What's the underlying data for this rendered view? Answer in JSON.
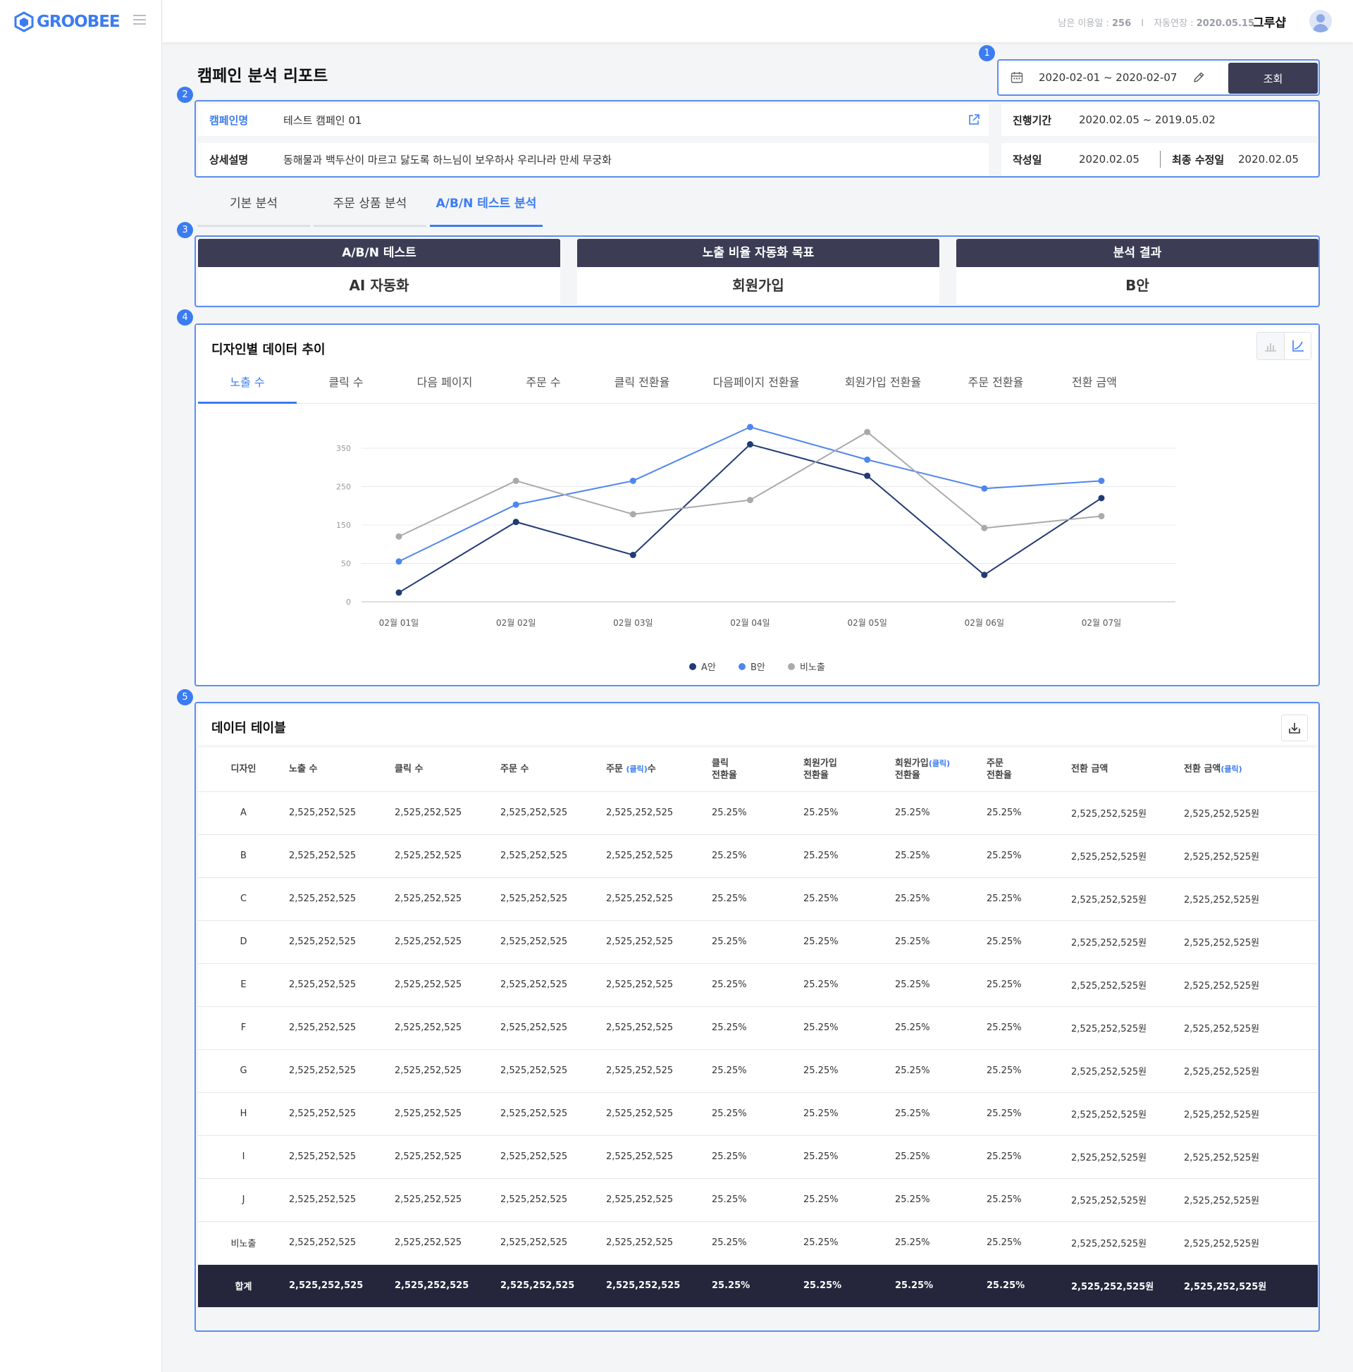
{
  "brand": {
    "logo_text": "GROOBEE",
    "accent": "#3b7cf2",
    "dark": "#3c3d55"
  },
  "header": {
    "remaining_label": "남은 이용일 :",
    "remaining_value": "256",
    "separator": "I",
    "auto_renew_label": "자동연장 :",
    "auto_renew_value": "2020.05.15",
    "shop_name": "그루샵"
  },
  "markers": [
    "1",
    "2",
    "3",
    "4",
    "5"
  ],
  "page_title": "캠페인 분석 리포트",
  "date_search": {
    "range": "2020-02-01 ~ 2020-02-07",
    "button": "조회"
  },
  "campaign": {
    "name_label": "캠페인명",
    "name_value": "테스트 캠페인 01",
    "desc_label": "상세설명",
    "desc_value": "동해물과 백두산이 마르고 닳도록 하느님이 보우하사 우리나라 만세 무궁화",
    "period_label": "진행기간",
    "period_value": "2020.02.05 ~ 2019.05.02",
    "created_label": "작성일",
    "created_value": "2020.02.05",
    "modified_label": "최종 수정일",
    "modified_value": "2020.02.05"
  },
  "main_tabs": [
    {
      "label": "기본 분석",
      "active": false
    },
    {
      "label": "주문 상품 분석",
      "active": false
    },
    {
      "label": "A/B/N 테스트 분석",
      "active": true
    }
  ],
  "ab_summary": [
    {
      "title": "A/B/N 테스트",
      "value": "AI 자동화"
    },
    {
      "title": "노출 비율 자동화 목표",
      "value": "회원가입"
    },
    {
      "title": "분석 결과",
      "value": "B안"
    }
  ],
  "chart_panel": {
    "title": "디자인별 데이터 추이",
    "metric_tabs": [
      "노출 수",
      "클릭 수",
      "다음 페이지",
      "주문 수",
      "클릭 전환율",
      "다음페이지 전환율",
      "회원가입  전환율",
      "주문 전환율",
      "전환 금액"
    ],
    "active_metric": 0
  },
  "chart_data": {
    "type": "line",
    "x": [
      "02월 01일",
      "02월 02일",
      "02월 03일",
      "02월 04일",
      "02월 05일",
      "02월 06일",
      "02월 07일"
    ],
    "y_ticks": [
      "350",
      "250",
      "150",
      "50",
      "0"
    ],
    "series": [
      {
        "name": "A안",
        "color": "#213b74",
        "values": [
          12,
          158,
          72,
          360,
          278,
          35,
          220
        ]
      },
      {
        "name": "B안",
        "color": "#4f86ee",
        "values": [
          55,
          203,
          265,
          405,
          320,
          245,
          265
        ]
      },
      {
        "name": "비노출",
        "color": "#a9aaad",
        "values": [
          120,
          265,
          178,
          215,
          392,
          142,
          173
        ]
      }
    ],
    "legend_position": "bottom-center",
    "grid": true
  },
  "table_panel": {
    "title": "데이터 테이블",
    "headers": [
      {
        "main": "디자인",
        "sub": ""
      },
      {
        "main": "노출 수",
        "sub": ""
      },
      {
        "main": "클릭 수",
        "sub": ""
      },
      {
        "main": "주문 수",
        "sub": ""
      },
      {
        "main": "주문 ",
        "blue": "(클릭)",
        "tail": "수"
      },
      {
        "main": "클릭",
        "sub": "전환율"
      },
      {
        "main": "회원가입",
        "sub": "전환율"
      },
      {
        "main": "회원가입",
        "blue": "(클릭)",
        "sub": "전환율"
      },
      {
        "main": "주문",
        "sub": "전환율"
      },
      {
        "main": "전환 금액",
        "sub": ""
      },
      {
        "main": "전환 금액",
        "blue": "(클릭)",
        "sub": ""
      }
    ],
    "rows": [
      [
        "A",
        "2,525,252,525",
        "2,525,252,525",
        "2,525,252,525",
        "2,525,252,525",
        "25.25%",
        "25.25%",
        "25.25%",
        "25.25%",
        "2,525,252,525원",
        "2,525,252,525원"
      ],
      [
        "B",
        "2,525,252,525",
        "2,525,252,525",
        "2,525,252,525",
        "2,525,252,525",
        "25.25%",
        "25.25%",
        "25.25%",
        "25.25%",
        "2,525,252,525원",
        "2,525,252,525원"
      ],
      [
        "C",
        "2,525,252,525",
        "2,525,252,525",
        "2,525,252,525",
        "2,525,252,525",
        "25.25%",
        "25.25%",
        "25.25%",
        "25.25%",
        "2,525,252,525원",
        "2,525,252,525원"
      ],
      [
        "D",
        "2,525,252,525",
        "2,525,252,525",
        "2,525,252,525",
        "2,525,252,525",
        "25.25%",
        "25.25%",
        "25.25%",
        "25.25%",
        "2,525,252,525원",
        "2,525,252,525원"
      ],
      [
        "E",
        "2,525,252,525",
        "2,525,252,525",
        "2,525,252,525",
        "2,525,252,525",
        "25.25%",
        "25.25%",
        "25.25%",
        "25.25%",
        "2,525,252,525원",
        "2,525,252,525원"
      ],
      [
        "F",
        "2,525,252,525",
        "2,525,252,525",
        "2,525,252,525",
        "2,525,252,525",
        "25.25%",
        "25.25%",
        "25.25%",
        "25.25%",
        "2,525,252,525원",
        "2,525,252,525원"
      ],
      [
        "G",
        "2,525,252,525",
        "2,525,252,525",
        "2,525,252,525",
        "2,525,252,525",
        "25.25%",
        "25.25%",
        "25.25%",
        "25.25%",
        "2,525,252,525원",
        "2,525,252,525원"
      ],
      [
        "H",
        "2,525,252,525",
        "2,525,252,525",
        "2,525,252,525",
        "2,525,252,525",
        "25.25%",
        "25.25%",
        "25.25%",
        "25.25%",
        "2,525,252,525원",
        "2,525,252,525원"
      ],
      [
        "I",
        "2,525,252,525",
        "2,525,252,525",
        "2,525,252,525",
        "2,525,252,525",
        "25.25%",
        "25.25%",
        "25.25%",
        "25.25%",
        "2,525,252,525원",
        "2,525,252,525원"
      ],
      [
        "J",
        "2,525,252,525",
        "2,525,252,525",
        "2,525,252,525",
        "2,525,252,525",
        "25.25%",
        "25.25%",
        "25.25%",
        "25.25%",
        "2,525,252,525원",
        "2,525,252,525원"
      ],
      [
        "비노출",
        "2,525,252,525",
        "2,525,252,525",
        "2,525,252,525",
        "2,525,252,525",
        "25.25%",
        "25.25%",
        "25.25%",
        "25.25%",
        "2,525,252,525원",
        "2,525,252,525원"
      ]
    ],
    "total": [
      "합계",
      "2,525,252,525",
      "2,525,252,525",
      "2,525,252,525",
      "2,525,252,525",
      "25.25%",
      "25.25%",
      "25.25%",
      "25.25%",
      "2,525,252,525원",
      "2,525,252,525원"
    ]
  }
}
